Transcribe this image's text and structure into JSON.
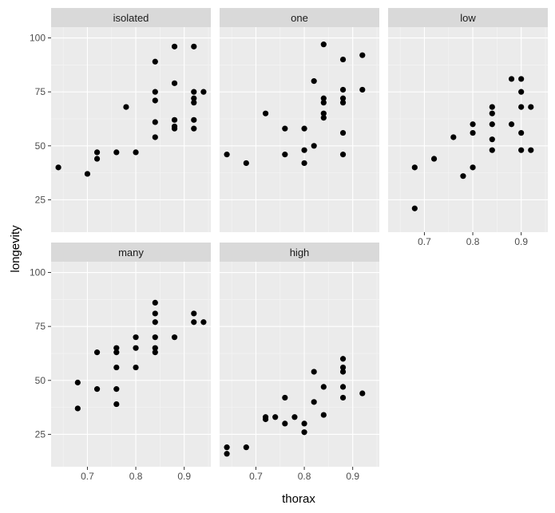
{
  "chart_data": {
    "type": "scatter",
    "xlabel": "thorax",
    "ylabel": "longevity",
    "xlim": [
      0.625,
      0.955
    ],
    "ylim": [
      10,
      105
    ],
    "x_ticks": [
      0.7,
      0.8,
      0.9
    ],
    "y_ticks": [
      25,
      50,
      75,
      100
    ],
    "grid": true,
    "facets": [
      {
        "label": "isolated",
        "points": [
          {
            "x": 0.64,
            "y": 40
          },
          {
            "x": 0.7,
            "y": 37
          },
          {
            "x": 0.72,
            "y": 47
          },
          {
            "x": 0.72,
            "y": 44
          },
          {
            "x": 0.76,
            "y": 47
          },
          {
            "x": 0.78,
            "y": 68
          },
          {
            "x": 0.8,
            "y": 47
          },
          {
            "x": 0.84,
            "y": 89
          },
          {
            "x": 0.84,
            "y": 75
          },
          {
            "x": 0.84,
            "y": 71
          },
          {
            "x": 0.84,
            "y": 61
          },
          {
            "x": 0.84,
            "y": 54
          },
          {
            "x": 0.88,
            "y": 96
          },
          {
            "x": 0.88,
            "y": 79
          },
          {
            "x": 0.88,
            "y": 62
          },
          {
            "x": 0.88,
            "y": 59
          },
          {
            "x": 0.88,
            "y": 58
          },
          {
            "x": 0.92,
            "y": 96
          },
          {
            "x": 0.92,
            "y": 75
          },
          {
            "x": 0.92,
            "y": 72
          },
          {
            "x": 0.92,
            "y": 70
          },
          {
            "x": 0.92,
            "y": 62
          },
          {
            "x": 0.92,
            "y": 58
          },
          {
            "x": 0.94,
            "y": 75
          }
        ]
      },
      {
        "label": "one",
        "points": [
          {
            "x": 0.64,
            "y": 46
          },
          {
            "x": 0.68,
            "y": 42
          },
          {
            "x": 0.72,
            "y": 65
          },
          {
            "x": 0.76,
            "y": 58
          },
          {
            "x": 0.76,
            "y": 46
          },
          {
            "x": 0.8,
            "y": 58
          },
          {
            "x": 0.8,
            "y": 48
          },
          {
            "x": 0.8,
            "y": 42
          },
          {
            "x": 0.82,
            "y": 80
          },
          {
            "x": 0.82,
            "y": 50
          },
          {
            "x": 0.84,
            "y": 97
          },
          {
            "x": 0.84,
            "y": 72
          },
          {
            "x": 0.84,
            "y": 70
          },
          {
            "x": 0.84,
            "y": 65
          },
          {
            "x": 0.84,
            "y": 63
          },
          {
            "x": 0.88,
            "y": 90
          },
          {
            "x": 0.88,
            "y": 76
          },
          {
            "x": 0.88,
            "y": 72
          },
          {
            "x": 0.88,
            "y": 70
          },
          {
            "x": 0.88,
            "y": 56
          },
          {
            "x": 0.88,
            "y": 46
          },
          {
            "x": 0.92,
            "y": 92
          },
          {
            "x": 0.92,
            "y": 76
          }
        ]
      },
      {
        "label": "low",
        "points": [
          {
            "x": 0.68,
            "y": 40
          },
          {
            "x": 0.68,
            "y": 21
          },
          {
            "x": 0.72,
            "y": 44
          },
          {
            "x": 0.76,
            "y": 54
          },
          {
            "x": 0.78,
            "y": 36
          },
          {
            "x": 0.8,
            "y": 60
          },
          {
            "x": 0.8,
            "y": 56
          },
          {
            "x": 0.8,
            "y": 40
          },
          {
            "x": 0.84,
            "y": 68
          },
          {
            "x": 0.84,
            "y": 65
          },
          {
            "x": 0.84,
            "y": 60
          },
          {
            "x": 0.84,
            "y": 53
          },
          {
            "x": 0.84,
            "y": 48
          },
          {
            "x": 0.88,
            "y": 81
          },
          {
            "x": 0.88,
            "y": 60
          },
          {
            "x": 0.9,
            "y": 81
          },
          {
            "x": 0.9,
            "y": 75
          },
          {
            "x": 0.9,
            "y": 68
          },
          {
            "x": 0.9,
            "y": 56
          },
          {
            "x": 0.9,
            "y": 48
          },
          {
            "x": 0.92,
            "y": 68
          },
          {
            "x": 0.92,
            "y": 48
          }
        ]
      },
      {
        "label": "many",
        "points": [
          {
            "x": 0.68,
            "y": 49
          },
          {
            "x": 0.68,
            "y": 37
          },
          {
            "x": 0.72,
            "y": 63
          },
          {
            "x": 0.72,
            "y": 46
          },
          {
            "x": 0.76,
            "y": 65
          },
          {
            "x": 0.76,
            "y": 63
          },
          {
            "x": 0.76,
            "y": 56
          },
          {
            "x": 0.76,
            "y": 46
          },
          {
            "x": 0.76,
            "y": 39
          },
          {
            "x": 0.8,
            "y": 70
          },
          {
            "x": 0.8,
            "y": 65
          },
          {
            "x": 0.8,
            "y": 56
          },
          {
            "x": 0.84,
            "y": 86
          },
          {
            "x": 0.84,
            "y": 81
          },
          {
            "x": 0.84,
            "y": 77
          },
          {
            "x": 0.84,
            "y": 70
          },
          {
            "x": 0.84,
            "y": 65
          },
          {
            "x": 0.84,
            "y": 63
          },
          {
            "x": 0.88,
            "y": 70
          },
          {
            "x": 0.92,
            "y": 81
          },
          {
            "x": 0.92,
            "y": 77
          },
          {
            "x": 0.94,
            "y": 77
          }
        ]
      },
      {
        "label": "high",
        "points": [
          {
            "x": 0.64,
            "y": 19
          },
          {
            "x": 0.64,
            "y": 16
          },
          {
            "x": 0.68,
            "y": 19
          },
          {
            "x": 0.72,
            "y": 33
          },
          {
            "x": 0.72,
            "y": 32
          },
          {
            "x": 0.74,
            "y": 33
          },
          {
            "x": 0.76,
            "y": 42
          },
          {
            "x": 0.76,
            "y": 30
          },
          {
            "x": 0.78,
            "y": 33
          },
          {
            "x": 0.8,
            "y": 30
          },
          {
            "x": 0.8,
            "y": 26
          },
          {
            "x": 0.82,
            "y": 54
          },
          {
            "x": 0.82,
            "y": 40
          },
          {
            "x": 0.84,
            "y": 47
          },
          {
            "x": 0.84,
            "y": 34
          },
          {
            "x": 0.88,
            "y": 60
          },
          {
            "x": 0.88,
            "y": 56
          },
          {
            "x": 0.88,
            "y": 54
          },
          {
            "x": 0.88,
            "y": 47
          },
          {
            "x": 0.88,
            "y": 42
          },
          {
            "x": 0.92,
            "y": 44
          }
        ]
      }
    ]
  }
}
